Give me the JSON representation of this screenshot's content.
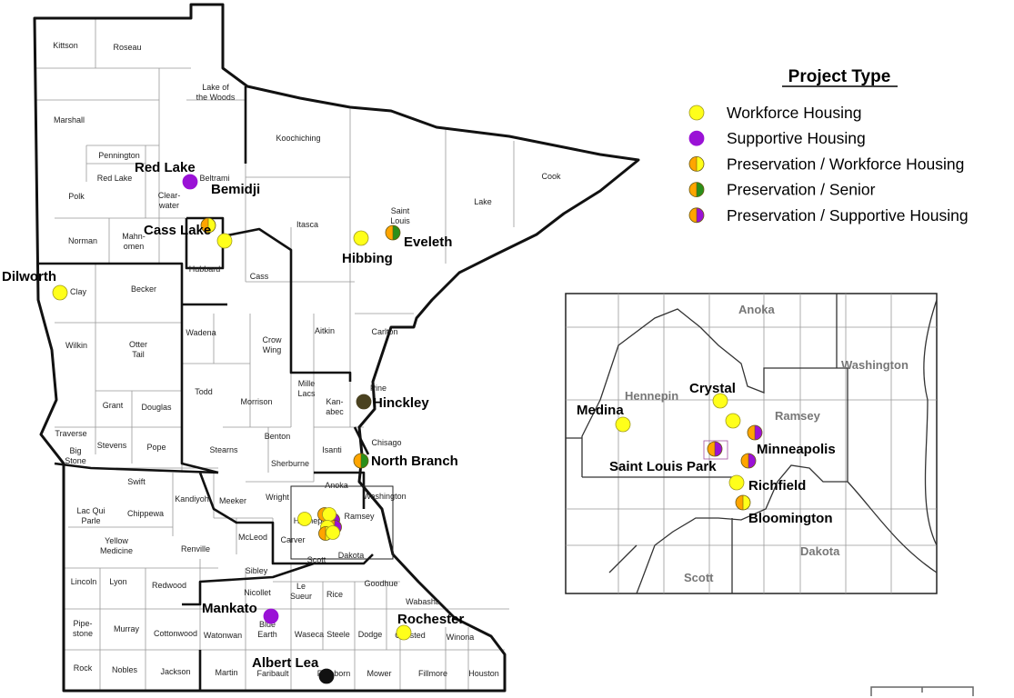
{
  "legend": {
    "title": "Project Type",
    "items": [
      {
        "label": "Workforce Housing",
        "type": "workforce"
      },
      {
        "label": "Supportive Housing",
        "type": "supportive"
      },
      {
        "label": "Preservation / Workforce Housing",
        "type": "pres_workforce"
      },
      {
        "label": "Preservation / Senior",
        "type": "pres_senior"
      },
      {
        "label": "Preservation / Supportive Housing",
        "type": "pres_supportive"
      }
    ]
  },
  "colors": {
    "workforce": "#ffff1a",
    "supportive": "#9a12d6",
    "preservation": "#ffa500",
    "senior": "#2a8f1a",
    "other_dark": "#4a4220",
    "other_black": "#111111"
  },
  "counties": [
    "Kittson",
    "Roseau",
    "Lake of",
    "the Woods",
    "Marshall",
    "Koochiching",
    "Cook",
    "Pennington",
    "Red Lake",
    "Polk",
    "Beltrami",
    "Clear-",
    "water",
    "Lake",
    "Saint",
    "Louis",
    "Itasca",
    "Norman",
    "Mahn-",
    "omen",
    "Hubbard",
    "Clay",
    "Becker",
    "Cass",
    "Wadena",
    "Otter",
    "Tail",
    "Wilkin",
    "Crow",
    "Wing",
    "Aitkin",
    "Carlton",
    "Pine",
    "Todd",
    "Morrison",
    "Mille",
    "Lacs",
    "Kan-",
    "abec",
    "Grant",
    "Douglas",
    "Traverse",
    "Big",
    "Stone",
    "Stevens",
    "Pope",
    "Stearns",
    "Benton",
    "Isanti",
    "Chisago",
    "Sherburne",
    "Anoka",
    "Swift",
    "Kandiyohi",
    "Meeker",
    "Wright",
    "Washington",
    "Lac Qui",
    "Parle",
    "Chippewa",
    "Hennepin",
    "Ramsey",
    "Yellow",
    "Medicine",
    "Renville",
    "McLeod",
    "Carver",
    "Dakota",
    "Scott",
    "Sibley",
    "Lincoln",
    "Lyon",
    "Redwood",
    "Nicollet",
    "Le",
    "Sueur",
    "Rice",
    "Goodhue",
    "Wabasha",
    "Pipe-",
    "stone",
    "Murray",
    "Cottonwood",
    "Watonwan",
    "Blue",
    "Earth",
    "Waseca",
    "Steele",
    "Dodge",
    "Olmsted",
    "Winona",
    "Rock",
    "Nobles",
    "Jackson",
    "Martin",
    "Faribault",
    "Freeborn",
    "Mower",
    "Fillmore",
    "Houston"
  ],
  "cities": [
    {
      "name": "Red Lake",
      "type": "supportive"
    },
    {
      "name": "Bemidji",
      "type": "pres_workforce"
    },
    {
      "name": "Cass Lake",
      "type": "workforce"
    },
    {
      "name": "Dilworth",
      "type": "workforce"
    },
    {
      "name": "Hibbing",
      "type": "workforce"
    },
    {
      "name": "Eveleth",
      "type": "pres_senior"
    },
    {
      "name": "Hinckley",
      "type": "other_dark"
    },
    {
      "name": "North Branch",
      "type": "pres_senior"
    },
    {
      "name": "Mankato",
      "type": "supportive"
    },
    {
      "name": "Rochester",
      "type": "workforce"
    },
    {
      "name": "Albert Lea",
      "type": "other_black"
    }
  ],
  "metro_cluster_markers": [
    "workforce",
    "pres_workforce",
    "pres_supportive",
    "pres_supportive",
    "workforce",
    "workforce",
    "pres_workforce",
    "workforce"
  ],
  "inset": {
    "counties": [
      "Anoka",
      "Washington",
      "Hennepin",
      "Ramsey",
      "Dakota",
      "Scott"
    ],
    "cities": [
      {
        "name": "Crystal",
        "type": "workforce"
      },
      {
        "name": "",
        "type": "workforce"
      },
      {
        "name": "Medina",
        "type": "workforce"
      },
      {
        "name": "Minneapolis",
        "type": "pres_supportive"
      },
      {
        "name": "",
        "type": "pres_supportive"
      },
      {
        "name": "Saint Louis Park",
        "type": "pres_supportive"
      },
      {
        "name": "Richfield",
        "type": "workforce"
      },
      {
        "name": "Bloomington",
        "type": "pres_workforce"
      }
    ]
  }
}
